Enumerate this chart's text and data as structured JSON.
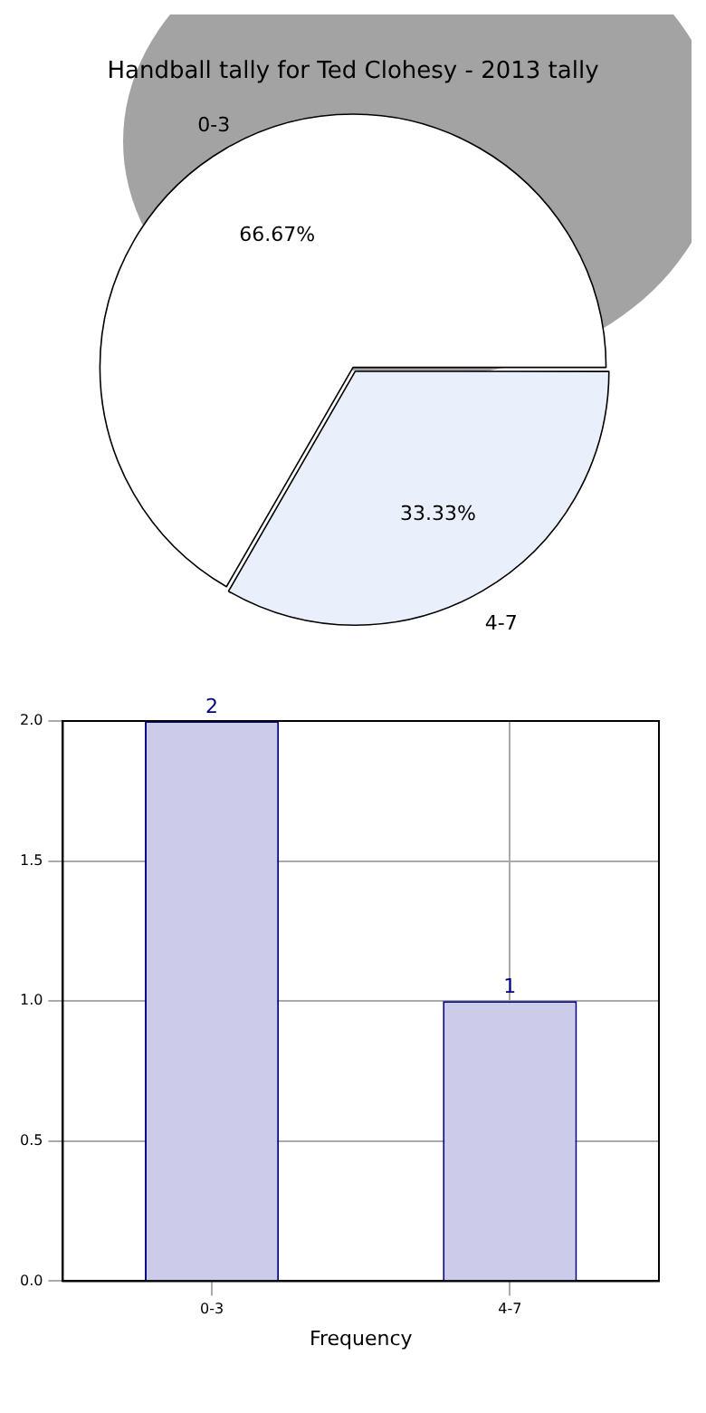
{
  "chart_data": [
    {
      "type": "pie",
      "title": "Handball tally for Ted Clohesy - 2013 tally",
      "categories": [
        "0-3",
        "4-7"
      ],
      "values": [
        66.67,
        33.33
      ],
      "colors": [
        "#ffffff",
        "#eaf0fb"
      ],
      "value_labels": [
        "66.67%",
        "33.33%"
      ],
      "legend": false
    },
    {
      "type": "bar",
      "categories": [
        "0-3",
        "4-7"
      ],
      "values": [
        2,
        1
      ],
      "color": "#ccccea",
      "xlabel": "Frequency",
      "ylim": [
        0,
        2
      ],
      "yticks": [
        {
          "value": 0,
          "label": "0.0"
        },
        {
          "value": 0.5,
          "label": "0.5"
        },
        {
          "value": 1,
          "label": "1.0"
        },
        {
          "value": 1.5,
          "label": "1.5"
        },
        {
          "value": 2,
          "label": "2.0"
        }
      ],
      "grid": true,
      "data_labels": true,
      "legend": false
    }
  ]
}
